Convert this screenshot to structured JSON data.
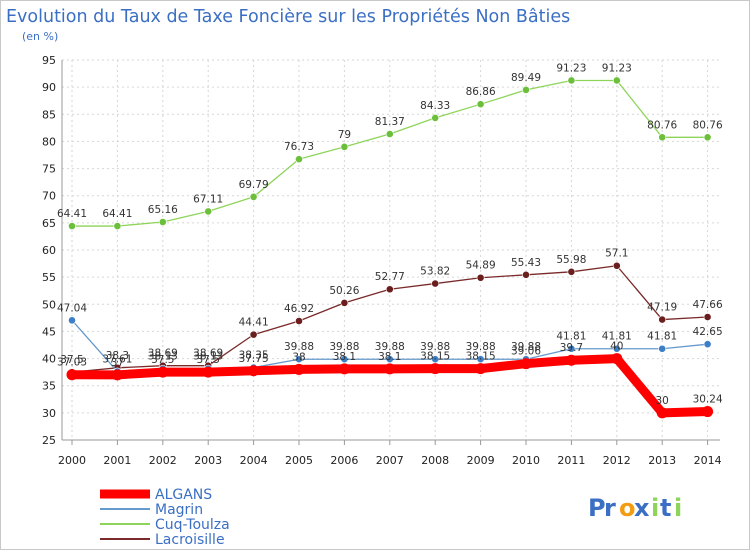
{
  "chart_data": {
    "type": "line",
    "title": "Evolution du Taux de Taxe Foncière sur les Propriétés Non Bâties",
    "subtitle": "(en %)",
    "x": [
      "2000",
      "2001",
      "2002",
      "2003",
      "2004",
      "2005",
      "2006",
      "2007",
      "2008",
      "2009",
      "2010",
      "2011",
      "2012",
      "2013",
      "2014"
    ],
    "ylim": [
      25,
      95
    ],
    "yticks": [
      "25",
      "30",
      "35",
      "40",
      "45",
      "50",
      "55",
      "60",
      "65",
      "70",
      "75",
      "80",
      "85",
      "90",
      "95"
    ],
    "grid": true,
    "series": [
      {
        "name": "Cuq-Toulza",
        "color": "#8ed45a",
        "dot": "#6cbf3a",
        "values": [
          64.41,
          64.41,
          65.16,
          67.11,
          69.79,
          76.73,
          79,
          81.37,
          84.33,
          86.86,
          89.49,
          91.23,
          91.23,
          80.76,
          80.76
        ],
        "labels": [
          "64.41",
          "64.41",
          "65.16",
          "67.11",
          "69.79",
          "76.73",
          "79",
          "81.37",
          "84.33",
          "86.86",
          "89.49",
          "91.23",
          "91.23",
          "80.76",
          "80.76"
        ]
      },
      {
        "name": "Lacroisille",
        "color": "#7a2a2a",
        "dot": "#6b1e1e",
        "values": [
          37.5,
          38.3,
          38.69,
          38.69,
          44.41,
          46.92,
          50.26,
          52.77,
          53.82,
          54.89,
          55.43,
          55.98,
          57.1,
          47.19,
          47.66
        ],
        "labels": [
          "37.5",
          "38.3",
          "38.69",
          "38.69",
          "44.41",
          "46.92",
          "50.26",
          "52.77",
          "53.82",
          "54.89",
          "55.43",
          "55.98",
          "57.1",
          "47.19",
          "47.66"
        ]
      },
      {
        "name": "Magrin",
        "color": "#6699cc",
        "dot": "#3d7fc6",
        "values": [
          47.04,
          37.61,
          38.13,
          38.13,
          38.35,
          39.88,
          39.88,
          39.88,
          39.88,
          39.88,
          39.88,
          41.81,
          41.81,
          41.81,
          42.65
        ],
        "labels": [
          "47.04",
          "37.61",
          "38.13",
          "38.13",
          "38.35",
          "39.88",
          "39.88",
          "39.88",
          "39.88",
          "39.88",
          "39.88",
          "41.81",
          "41.81",
          "41.81",
          "42.65"
        ]
      },
      {
        "name": "ALGANS",
        "color": "#ff0000",
        "dot": "#ff0000",
        "values": [
          37.03,
          37,
          37.5,
          37.5,
          37.75,
          38,
          38.1,
          38.1,
          38.15,
          38.15,
          39.06,
          39.7,
          40,
          30,
          30.24
        ],
        "labels": [
          "37.03",
          "37",
          "37.5",
          "37.5",
          "37.75",
          "38",
          "38.1",
          "38.1",
          "38.15",
          "38.15",
          "39.06",
          "39.7",
          "40",
          "30",
          "30.24"
        ]
      }
    ],
    "legend": [
      "ALGANS",
      "Magrin",
      "Cuq-Toulza",
      "Lacroisille"
    ],
    "brand": "Proxiti",
    "brand_letters": [
      "P",
      "r",
      "o",
      "x",
      "i",
      "t",
      "i"
    ],
    "brand_colors": [
      "#3b6fc4",
      "#3b6fc4",
      "#f39c12",
      "#3b6fc4",
      "#8ed45a",
      "#3b6fc4",
      "#8ed45a"
    ]
  }
}
